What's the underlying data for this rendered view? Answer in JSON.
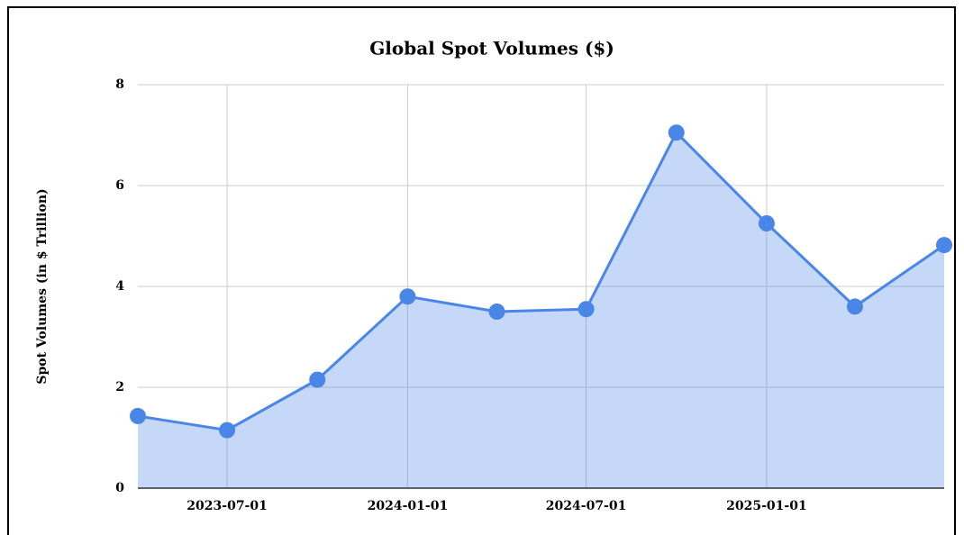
{
  "chart_data": {
    "type": "area",
    "title": "Global Spot Volumes ($)",
    "y_label": "Spot Volumes (in $ Trillion)",
    "x": [
      "2023-04-01",
      "2023-07-01",
      "2023-10-01",
      "2024-01-01",
      "2024-04-01",
      "2024-07-01",
      "2024-10-01",
      "2025-01-01",
      "2025-04-01",
      "2025-07-01"
    ],
    "series": [
      {
        "name": "Spot Volumes",
        "color": "#4a86e8",
        "values": [
          1.43,
          1.15,
          2.15,
          3.8,
          3.5,
          3.55,
          7.05,
          5.25,
          3.6,
          4.82
        ]
      }
    ],
    "xlim": [
      "2023-04-01",
      "2025-07-01"
    ],
    "xticks": [
      "2023-07-01",
      "2024-01-01",
      "2024-07-01",
      "2025-01-01"
    ],
    "ylim": [
      0,
      8
    ],
    "yticks": [
      0,
      2,
      4,
      6,
      8
    ],
    "grid": true
  }
}
